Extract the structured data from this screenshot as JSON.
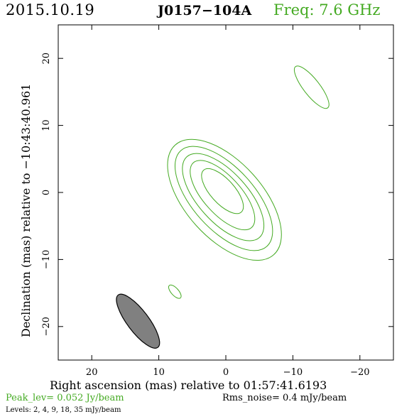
{
  "header": {
    "date": "2015.10.19",
    "source": "J0157−104A",
    "freq": "Freq: 7.6 GHz"
  },
  "footer": {
    "peak": "Peak_lev=  0.052 Jy/beam",
    "rms": "Rms_noise=  0.4 mJy/beam",
    "levels": "Levels:   2,    4,    9,   18,   35 mJy/beam"
  },
  "colors": {
    "contour": "#44aa22",
    "beam_fill": "#808080",
    "axes": "#000000"
  },
  "chart_data": {
    "type": "contour",
    "title": "",
    "xlabel": "Right ascension (mas) relative to 01:57:41.6193",
    "ylabel": "Declination (mas) relative to −10:43:40.961",
    "xlim": [
      25,
      -25
    ],
    "ylim": [
      -25,
      25
    ],
    "xticks": [
      20,
      10,
      0,
      -10,
      -20
    ],
    "yticks": [
      20,
      10,
      0,
      -10,
      -20
    ],
    "xtick_labels": [
      "20",
      "10",
      "0",
      "−10",
      "−20"
    ],
    "ytick_labels": [
      "20",
      "10",
      "0",
      "−10",
      "−20"
    ],
    "contour_levels_mJy": [
      2,
      4,
      9,
      18,
      35
    ],
    "contours": [
      {
        "cx": 0.2,
        "cy": -1.1,
        "major_mas": 22.0,
        "minor_mas": 11.4,
        "pa_deg": -48,
        "level": 2
      },
      {
        "cx": 0.3,
        "cy": -0.9,
        "major_mas": 19.2,
        "minor_mas": 9.2,
        "pa_deg": -48,
        "level": 4
      },
      {
        "cx": 0.4,
        "cy": -0.7,
        "major_mas": 16.2,
        "minor_mas": 7.4,
        "pa_deg": -48,
        "level": 9
      },
      {
        "cx": 0.5,
        "cy": -0.4,
        "major_mas": 13.0,
        "minor_mas": 5.6,
        "pa_deg": -48,
        "level": 18
      },
      {
        "cx": 0.5,
        "cy": 0.2,
        "major_mas": 8.4,
        "minor_mas": 3.6,
        "pa_deg": -48,
        "level": 35
      },
      {
        "cx": -12.8,
        "cy": 15.7,
        "major_mas": 7.8,
        "minor_mas": 2.4,
        "pa_deg": -52,
        "level": 2
      },
      {
        "cx": 7.6,
        "cy": -14.8,
        "major_mas": 2.5,
        "minor_mas": 1.1,
        "pa_deg": -48,
        "level": 2
      }
    ],
    "beam": {
      "cx": 13.1,
      "cy": -19.2,
      "major_mas": 9.8,
      "minor_mas": 3.2,
      "pa_deg": -53
    },
    "grid": false
  }
}
